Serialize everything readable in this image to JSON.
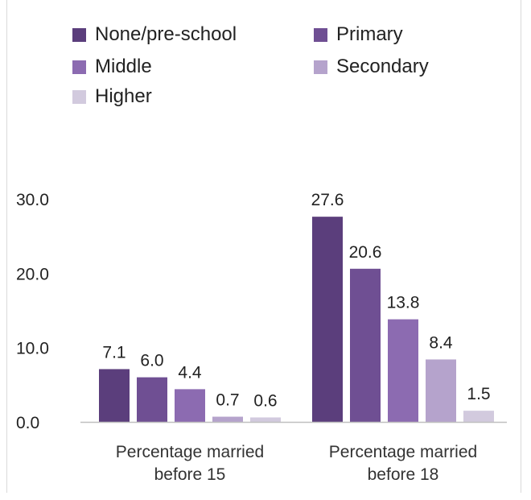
{
  "chart_data": {
    "type": "bar",
    "categories": [
      "Percentage married before 15",
      "Percentage married before 18"
    ],
    "category_lines": [
      [
        "Percentage married",
        "before 15"
      ],
      [
        "Percentage married",
        "before 18"
      ]
    ],
    "series": [
      {
        "name": "None/pre-school",
        "values": [
          7.1,
          27.6
        ],
        "color": "#5b3e7c"
      },
      {
        "name": "Primary",
        "values": [
          6.0,
          20.6
        ],
        "color": "#6f4f93"
      },
      {
        "name": "Middle",
        "values": [
          4.4,
          13.8
        ],
        "color": "#8c6bb1"
      },
      {
        "name": "Secondary",
        "values": [
          0.7,
          8.4
        ],
        "color": "#b5a3cc"
      },
      {
        "name": "Higher",
        "values": [
          0.6,
          1.5
        ],
        "color": "#d2cade"
      }
    ],
    "value_labels": [
      [
        "7.1",
        "27.6"
      ],
      [
        "6.0",
        "20.6"
      ],
      [
        "4.4",
        "13.8"
      ],
      [
        "0.7",
        "8.4"
      ],
      [
        "0.6",
        "1.5"
      ]
    ],
    "yticks": [
      "0.0",
      "10.0",
      "20.0",
      "30.0"
    ],
    "ylim": [
      0,
      30
    ],
    "title": "",
    "xlabel": "",
    "ylabel": "",
    "legend_position": "top",
    "grid": false
  }
}
